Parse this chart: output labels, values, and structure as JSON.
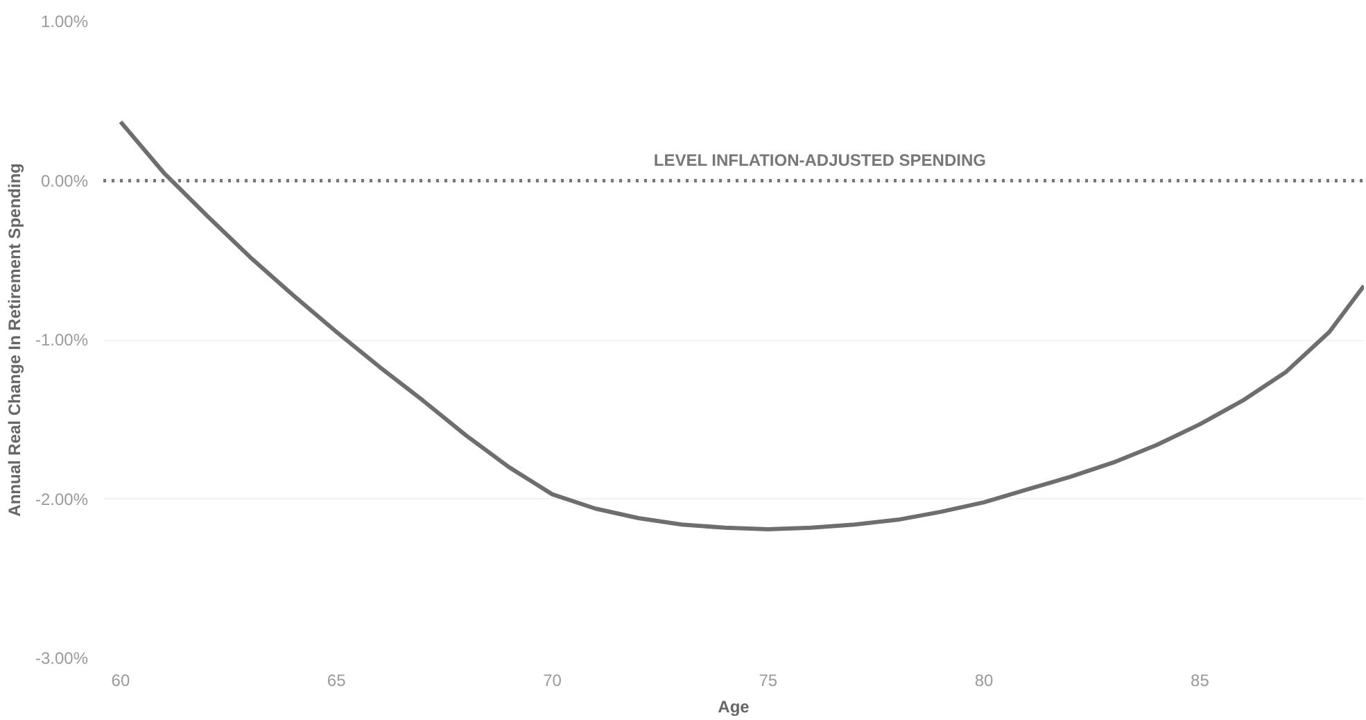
{
  "chart_data": {
    "type": "line",
    "xlabel": "Age",
    "ylabel": "Annual Real Change In Retirement Spending",
    "x": [
      60,
      61,
      62,
      63,
      64,
      65,
      66,
      67,
      68,
      69,
      70,
      71,
      72,
      73,
      74,
      75,
      76,
      77,
      78,
      79,
      80,
      81,
      82,
      83,
      84,
      85,
      86,
      87,
      88,
      88.8
    ],
    "series": [
      {
        "color": "#6e6e6e",
        "values": [
          0.37,
          0.05,
          -0.22,
          -0.48,
          -0.72,
          -0.95,
          -1.17,
          -1.38,
          -1.6,
          -1.8,
          -1.97,
          -2.06,
          -2.12,
          -2.16,
          -2.18,
          -2.19,
          -2.18,
          -2.16,
          -2.13,
          -2.08,
          -2.02,
          -1.94,
          -1.86,
          -1.77,
          -1.66,
          -1.53,
          -1.38,
          -1.2,
          -0.95,
          -0.66
        ]
      }
    ],
    "xlim": [
      59.6,
      88.8
    ],
    "xticks": [
      60,
      65,
      70,
      75,
      80,
      85
    ],
    "ylim": [
      -3,
      1
    ],
    "yticks": [
      {
        "value": 1,
        "label": "1.00%"
      },
      {
        "value": 0,
        "label": "0.00%"
      },
      {
        "value": -1,
        "label": "-1.00%"
      },
      {
        "value": -2,
        "label": "-2.00%"
      },
      {
        "value": -3,
        "label": "-3.00%"
      }
    ],
    "ref_lines": [
      {
        "axis": "y",
        "value": 0,
        "label": "LEVEL INFLATION-ADJUSTED SPENDING",
        "color": "#777777",
        "line_style": "dotted"
      }
    ],
    "grid": "y",
    "marker": "none",
    "line_style": "solid"
  }
}
